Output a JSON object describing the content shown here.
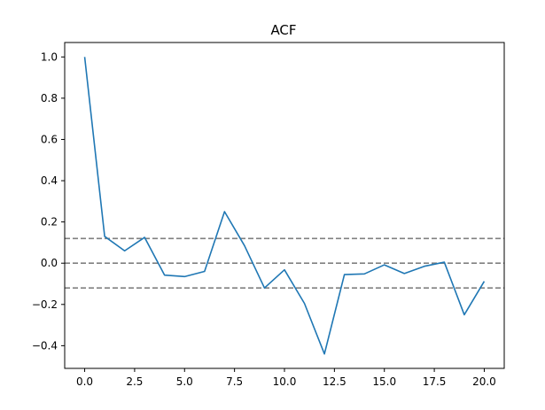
{
  "chart_data": {
    "type": "line",
    "title": "ACF",
    "xlabel": "",
    "ylabel": "",
    "xlim": [
      -1.0,
      21.0
    ],
    "ylim": [
      -0.51,
      1.07
    ],
    "grid": false,
    "x_ticks": [
      0,
      2.5,
      5,
      7.5,
      10,
      12.5,
      15,
      17.5,
      20
    ],
    "x_tick_labels": [
      "0.0",
      "2.5",
      "5.0",
      "7.5",
      "10.0",
      "12.5",
      "15.0",
      "17.5",
      "20.0"
    ],
    "y_ticks": [
      -0.4,
      -0.2,
      0.0,
      0.2,
      0.4,
      0.6,
      0.8,
      1.0
    ],
    "y_tick_labels": [
      "−0.4",
      "−0.2",
      "0.0",
      "0.2",
      "0.4",
      "0.6",
      "0.8",
      "1.0"
    ],
    "reference_lines": [
      0.12,
      0.0,
      -0.12
    ],
    "colors": {
      "series": "#1f77b4",
      "reference": "#808080"
    },
    "series": [
      {
        "x": [
          0,
          1,
          2,
          3,
          4,
          5,
          6,
          7,
          8,
          9,
          10,
          11,
          12,
          13,
          14,
          15,
          16,
          17,
          18,
          19,
          20
        ],
        "values": [
          1.0,
          0.13,
          0.06,
          0.125,
          -0.058,
          -0.065,
          -0.04,
          0.25,
          0.085,
          -0.12,
          -0.032,
          -0.195,
          -0.44,
          -0.055,
          -0.052,
          -0.008,
          -0.05,
          -0.015,
          0.005,
          -0.25,
          -0.088
        ]
      }
    ]
  }
}
